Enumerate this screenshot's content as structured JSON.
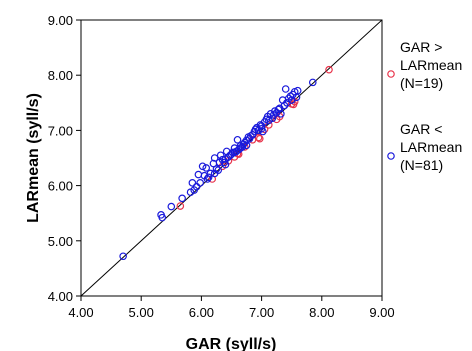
{
  "chart_data": {
    "type": "scatter",
    "xlabel": "GAR (syll/s)",
    "ylabel": "LARmean (syll/s)",
    "xlim": [
      4.0,
      9.0
    ],
    "ylim": [
      4.0,
      9.0
    ],
    "x_ticks": [
      "4.00",
      "5.00",
      "6.00",
      "7.00",
      "8.00",
      "9.00"
    ],
    "y_ticks": [
      "4.00",
      "5.00",
      "6.00",
      "7.00",
      "8.00",
      "9.00"
    ],
    "reference_line": "identity",
    "grid": false,
    "legend_position": "right",
    "colors": {
      "series1": "#e8334a",
      "series2": "#1a1adb",
      "line": "#000000"
    },
    "series": [
      {
        "name": "GAR > LARmean (N=19)",
        "legend_lines": [
          "GAR >",
          "LARmean",
          "(N=19)"
        ],
        "color": "#e8334a",
        "points": [
          [
            5.65,
            5.63
          ],
          [
            6.18,
            6.12
          ],
          [
            6.35,
            6.35
          ],
          [
            6.45,
            6.45
          ],
          [
            6.55,
            6.52
          ],
          [
            6.62,
            6.57
          ],
          [
            6.72,
            6.7
          ],
          [
            6.85,
            6.83
          ],
          [
            6.95,
            6.87
          ],
          [
            6.97,
            6.85
          ],
          [
            7.05,
            7.02
          ],
          [
            7.12,
            7.1
          ],
          [
            7.25,
            7.2
          ],
          [
            7.3,
            7.25
          ],
          [
            7.5,
            7.48
          ],
          [
            7.53,
            7.47
          ],
          [
            7.55,
            7.52
          ],
          [
            6.6,
            6.58
          ],
          [
            8.12,
            8.1
          ]
        ]
      },
      {
        "name": "GAR < LARmean (N=81)",
        "legend_lines": [
          "GAR <",
          "LARmean",
          "(N=81)"
        ],
        "color": "#1a1adb",
        "points": [
          [
            4.7,
            4.72
          ],
          [
            5.33,
            5.47
          ],
          [
            5.35,
            5.42
          ],
          [
            5.5,
            5.62
          ],
          [
            5.68,
            5.77
          ],
          [
            5.82,
            5.88
          ],
          [
            5.85,
            6.05
          ],
          [
            5.88,
            5.92
          ],
          [
            5.92,
            5.98
          ],
          [
            5.95,
            6.2
          ],
          [
            5.98,
            6.05
          ],
          [
            6.02,
            6.35
          ],
          [
            6.05,
            6.18
          ],
          [
            6.08,
            6.32
          ],
          [
            6.1,
            6.12
          ],
          [
            6.15,
            6.22
          ],
          [
            6.2,
            6.4
          ],
          [
            6.22,
            6.5
          ],
          [
            6.25,
            6.3
          ],
          [
            6.28,
            6.28
          ],
          [
            6.3,
            6.42
          ],
          [
            6.32,
            6.55
          ],
          [
            6.35,
            6.47
          ],
          [
            6.38,
            6.42
          ],
          [
            6.4,
            6.48
          ],
          [
            6.42,
            6.62
          ],
          [
            6.45,
            6.52
          ],
          [
            6.48,
            6.55
          ],
          [
            6.5,
            6.57
          ],
          [
            6.52,
            6.6
          ],
          [
            6.55,
            6.68
          ],
          [
            6.58,
            6.62
          ],
          [
            6.6,
            6.83
          ],
          [
            6.62,
            6.65
          ],
          [
            6.65,
            6.72
          ],
          [
            6.68,
            6.7
          ],
          [
            6.7,
            6.75
          ],
          [
            6.72,
            6.78
          ],
          [
            6.75,
            6.82
          ],
          [
            6.78,
            6.88
          ],
          [
            6.8,
            6.85
          ],
          [
            6.82,
            6.9
          ],
          [
            6.85,
            6.92
          ],
          [
            6.88,
            6.98
          ],
          [
            6.9,
            7.02
          ],
          [
            6.92,
            7.05
          ],
          [
            6.95,
            7.0
          ],
          [
            6.98,
            7.1
          ],
          [
            7.0,
            7.08
          ],
          [
            7.02,
            6.98
          ],
          [
            7.05,
            7.15
          ],
          [
            7.08,
            7.2
          ],
          [
            7.1,
            7.25
          ],
          [
            7.12,
            7.18
          ],
          [
            7.15,
            7.3
          ],
          [
            7.18,
            7.22
          ],
          [
            7.2,
            7.28
          ],
          [
            7.22,
            7.35
          ],
          [
            7.25,
            7.32
          ],
          [
            7.28,
            7.38
          ],
          [
            7.3,
            7.4
          ],
          [
            7.32,
            7.3
          ],
          [
            7.35,
            7.55
          ],
          [
            7.38,
            7.45
          ],
          [
            7.4,
            7.75
          ],
          [
            7.42,
            7.5
          ],
          [
            7.45,
            7.58
          ],
          [
            7.48,
            7.62
          ],
          [
            7.5,
            7.55
          ],
          [
            7.52,
            7.65
          ],
          [
            7.55,
            7.7
          ],
          [
            7.58,
            7.6
          ],
          [
            7.6,
            7.72
          ],
          [
            7.85,
            7.87
          ],
          [
            6.4,
            6.38
          ],
          [
            6.55,
            6.6
          ],
          [
            6.65,
            6.68
          ],
          [
            6.75,
            6.73
          ],
          [
            7.0,
            7.03
          ],
          [
            6.22,
            6.22
          ],
          [
            6.12,
            6.15
          ]
        ]
      }
    ]
  }
}
